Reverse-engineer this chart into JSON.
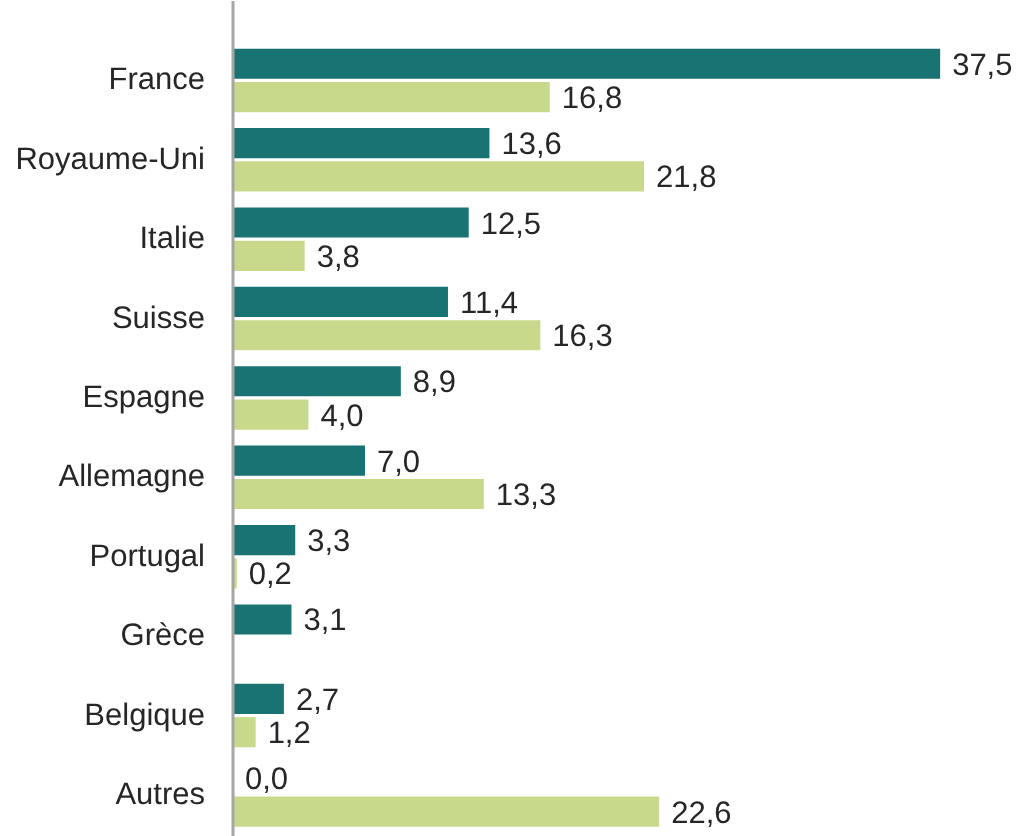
{
  "chart_data": {
    "type": "bar",
    "orientation": "horizontal",
    "categories": [
      "France",
      "Royaume-Uni",
      "Italie",
      "Suisse",
      "Espagne",
      "Allemagne",
      "Portugal",
      "Grèce",
      "Belgique",
      "Autres"
    ],
    "series": [
      {
        "color": "#1a7373",
        "values": [
          37.5,
          13.6,
          12.5,
          11.4,
          8.9,
          7.0,
          3.3,
          3.1,
          2.7,
          0.0
        ],
        "value_labels": [
          "37,5",
          "13,6",
          "12,5",
          "11,4",
          "8,9",
          "7,0",
          "3,3",
          "3,1",
          "2,7",
          "0,0"
        ]
      },
      {
        "color": "#c9d98b",
        "values": [
          16.8,
          21.8,
          3.8,
          16.3,
          4.0,
          13.3,
          0.2,
          null,
          1.2,
          22.6
        ],
        "value_labels": [
          "16,8",
          "21,8",
          "3,8",
          "16,3",
          "4,0",
          "13,3",
          "0,2",
          null,
          "1,2",
          "22,6"
        ]
      }
    ],
    "tick_labels": "y"
  }
}
